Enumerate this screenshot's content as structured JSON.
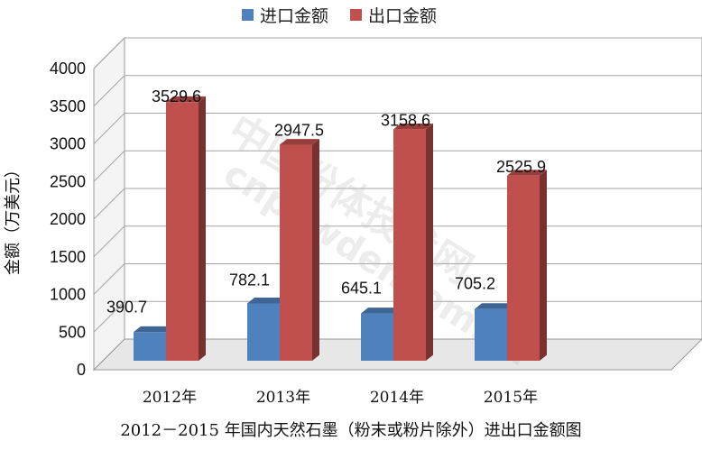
{
  "chart_data": {
    "type": "bar",
    "title": "2012－2015 年国内天然石墨（粉末或粉片除外）进出口金额图",
    "ylabel": "金额（万美元）",
    "xlabel": "",
    "categories": [
      "2012年",
      "2013年",
      "2014年",
      "2015年"
    ],
    "series": [
      {
        "name": "进口金额",
        "values": [
          390.7,
          782.1,
          645.1,
          705.2
        ],
        "color": "#4f81bd"
      },
      {
        "name": "出口金额",
        "values": [
          3529.6,
          2947.5,
          3158.6,
          2525.9
        ],
        "color": "#c0504d"
      }
    ],
    "data_labels": [
      [
        "390.7",
        "782.1",
        "645.1",
        "705.2"
      ],
      [
        "3529.6",
        "2947.5",
        "3158.6",
        "2525.9"
      ]
    ],
    "ylim": [
      0,
      4000
    ],
    "yticks": [
      0,
      500,
      1000,
      1500,
      2000,
      2500,
      3000,
      3500,
      4000
    ],
    "grid": true,
    "legend": "top",
    "style": "3d-clustered-column"
  },
  "watermark": {
    "line1": "中国粉体技术网",
    "line2": "cnpowder.com.cn"
  }
}
